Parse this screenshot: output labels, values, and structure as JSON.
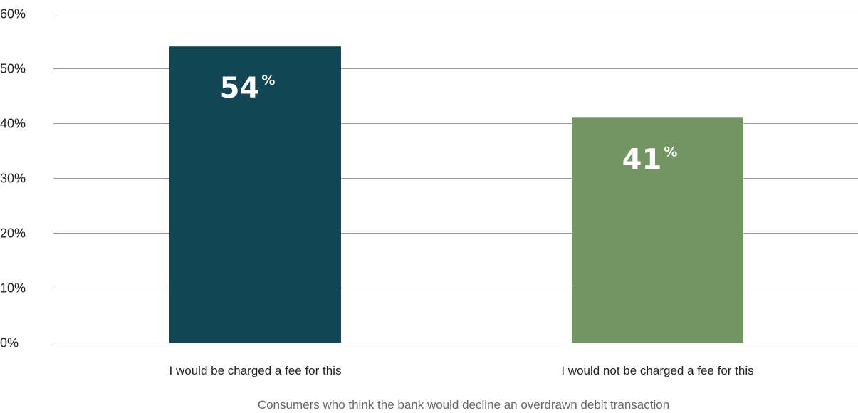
{
  "chart_data": {
    "type": "bar",
    "categories": [
      "I would be charged a fee for this",
      "I would not be charged a fee for this"
    ],
    "values": [
      54,
      41
    ],
    "data_labels": [
      "54",
      "41"
    ],
    "data_label_suffix": "%",
    "colors": [
      "#124654",
      "#739562"
    ],
    "xlabel": "Consumers who think the bank would decline an overdrawn debit transaction",
    "ylabel": "",
    "ylim": [
      0,
      60
    ],
    "yticks": [
      0,
      10,
      20,
      30,
      40,
      50,
      60
    ],
    "ytick_labels": [
      "0%",
      "10%",
      "20%",
      "30%",
      "40%",
      "50%",
      "60%"
    ],
    "grid": true,
    "legend": "none"
  }
}
